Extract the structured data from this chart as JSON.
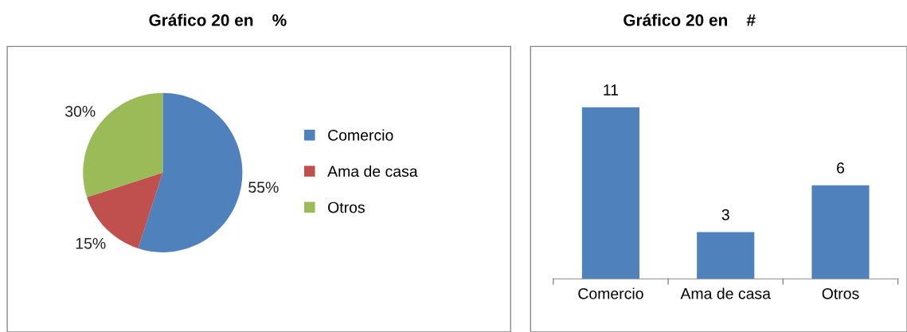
{
  "chart_data": [
    {
      "type": "pie",
      "title": "Gráfico 20 en    %",
      "categories": [
        "Comercio",
        "Ama de casa",
        "Otros"
      ],
      "values": [
        55,
        15,
        30
      ],
      "colors": [
        "#4f81bd",
        "#c0504d",
        "#9bbb59"
      ],
      "value_labels": [
        "55%",
        "15%",
        "30%"
      ],
      "legend": "right"
    },
    {
      "type": "bar",
      "title": "Gráfico 20 en    #",
      "categories": [
        "Comercio",
        "Ama de casa",
        "Otros"
      ],
      "values": [
        11,
        3,
        6
      ],
      "color": "#4f81bd",
      "data_labels": true,
      "grid": false,
      "legend": false
    }
  ]
}
